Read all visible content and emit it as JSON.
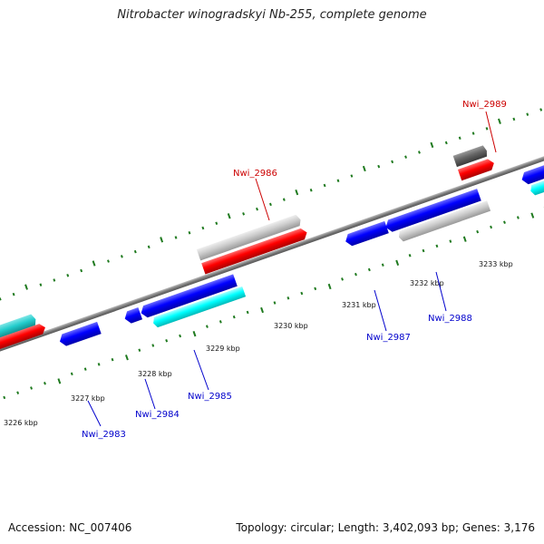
{
  "title": "Nitrobacter winogradskyi Nb-255, complete genome",
  "accession": "Accession: NC_007406",
  "summary": "Topology: circular; Length: 3,402,093 bp; Genes: 3,176",
  "colors": {
    "forward_label": "#cc0000",
    "reverse_label": "#0000cc",
    "backbone": "#7a7a7a",
    "ticks": "#1f7a1f"
  },
  "tick_labels": [
    {
      "text": "3226 kbp",
      "pos": 3226
    },
    {
      "text": "3227 kbp",
      "pos": 3227
    },
    {
      "text": "3228 kbp",
      "pos": 3228
    },
    {
      "text": "3229 kbp",
      "pos": 3229
    },
    {
      "text": "3230 kbp",
      "pos": 3230
    },
    {
      "text": "3231 kbp",
      "pos": 3231
    },
    {
      "text": "3232 kbp",
      "pos": 3232
    },
    {
      "text": "3233 kbp",
      "pos": 3233
    }
  ],
  "gene_labels": [
    {
      "id": "Nwi_2983",
      "strand": "reverse"
    },
    {
      "id": "Nwi_2984",
      "strand": "reverse"
    },
    {
      "id": "Nwi_2985",
      "strand": "reverse"
    },
    {
      "id": "Nwi_2986",
      "strand": "forward"
    },
    {
      "id": "Nwi_2987",
      "strand": "reverse"
    },
    {
      "id": "Nwi_2988",
      "strand": "reverse"
    },
    {
      "id": "Nwi_2989",
      "strand": "forward"
    }
  ]
}
